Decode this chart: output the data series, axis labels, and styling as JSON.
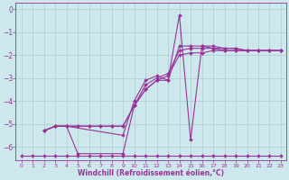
{
  "xlabel": "Windchill (Refroidissement éolien,°C)",
  "bg_color": "#cce8ec",
  "grid_color": "#aacccc",
  "line_color": "#993399",
  "xlim": [
    -0.5,
    23.5
  ],
  "ylim": [
    -6.6,
    0.3
  ],
  "yticks": [
    0,
    -1,
    -2,
    -3,
    -4,
    -5,
    -6
  ],
  "xticks": [
    0,
    1,
    2,
    3,
    4,
    5,
    6,
    7,
    8,
    9,
    10,
    11,
    12,
    13,
    14,
    15,
    16,
    17,
    18,
    19,
    20,
    21,
    22,
    23
  ],
  "line1_x": [
    0,
    1,
    2,
    3,
    4,
    5,
    6,
    7,
    8,
    9,
    10,
    11,
    12,
    13,
    14,
    15,
    16,
    17,
    18,
    19,
    20,
    21,
    22,
    23
  ],
  "line1_y": [
    -6.4,
    -6.4,
    -6.4,
    -6.4,
    -6.4,
    -6.4,
    -6.4,
    -6.4,
    -6.4,
    -6.4,
    -6.4,
    -6.4,
    -6.4,
    -6.4,
    -6.4,
    -6.4,
    -6.4,
    -6.4,
    -6.4,
    -6.4,
    -6.4,
    -6.4,
    -6.4,
    -6.4
  ],
  "line2_x": [
    2,
    3,
    4,
    5,
    6,
    7,
    8,
    9,
    10,
    11,
    12,
    13,
    14,
    15,
    16,
    17,
    18,
    19,
    20,
    21,
    22,
    23
  ],
  "line2_y": [
    -5.3,
    -5.1,
    -5.1,
    -5.1,
    -5.1,
    -5.1,
    -5.1,
    -5.1,
    -4.2,
    -3.5,
    -3.1,
    -2.9,
    -2.0,
    -1.9,
    -1.9,
    -1.8,
    -1.8,
    -1.8,
    -1.8,
    -1.8,
    -1.8,
    -1.8
  ],
  "line3_x": [
    2,
    3,
    4,
    5,
    6,
    7,
    8,
    9,
    10,
    11,
    12,
    13,
    14,
    15,
    16,
    17,
    18,
    19,
    20,
    21,
    22,
    23
  ],
  "line3_y": [
    -5.3,
    -5.1,
    -5.1,
    -5.1,
    -5.1,
    -5.1,
    -5.1,
    -5.1,
    -4.2,
    -3.3,
    -3.0,
    -2.8,
    -1.8,
    -1.7,
    -1.7,
    -1.7,
    -1.7,
    -1.7,
    -1.8,
    -1.8,
    -1.8,
    -1.8
  ],
  "line4_x": [
    2,
    3,
    4,
    9,
    10,
    11,
    12,
    13,
    14,
    15,
    16,
    17,
    18,
    19,
    20,
    21,
    22,
    23
  ],
  "line4_y": [
    -5.3,
    -5.1,
    -5.1,
    -5.5,
    -4.0,
    -3.1,
    -2.9,
    -3.1,
    -1.6,
    -1.6,
    -1.6,
    -1.7,
    -1.8,
    -1.8,
    -1.8,
    -1.8,
    -1.8,
    -1.8
  ],
  "line5_x": [
    2,
    3,
    4,
    5,
    9,
    10,
    11,
    12,
    13,
    14,
    15,
    16,
    17,
    18,
    19,
    20,
    21,
    22,
    23
  ],
  "line5_y": [
    -5.3,
    -5.1,
    -5.1,
    -6.3,
    -6.3,
    -4.2,
    -3.5,
    -3.1,
    -3.1,
    -0.25,
    -5.7,
    -1.6,
    -1.6,
    -1.7,
    -1.7,
    -1.8,
    -1.8,
    -1.8,
    -1.8
  ]
}
